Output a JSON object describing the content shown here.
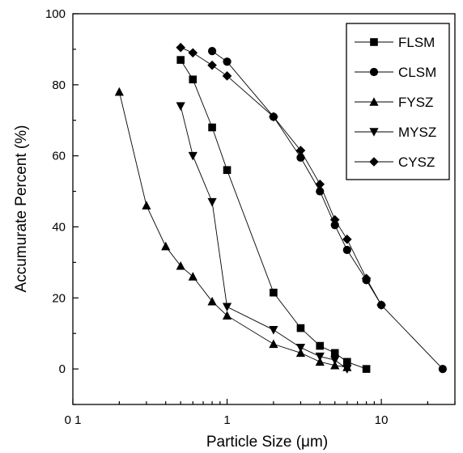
{
  "chart_data": {
    "type": "line",
    "title": "",
    "xlabel": "Particle Size (μm)",
    "ylabel": "Accumurate Percent (%)",
    "x_scale": "log",
    "xlim": [
      0.1,
      30
    ],
    "ylim": [
      -10,
      100
    ],
    "x_ticks": [
      0.1,
      1,
      10
    ],
    "x_tick_labels": [
      "0 1",
      "1",
      "10"
    ],
    "y_ticks": [
      0,
      20,
      40,
      60,
      80,
      100
    ],
    "y_tick_labels": [
      "0",
      "20",
      "40",
      "60",
      "80",
      "100"
    ],
    "grid": false,
    "legend_position": "top-right",
    "series": [
      {
        "name": "FLSM",
        "marker": "square",
        "x": [
          0.5,
          0.6,
          0.8,
          1,
          2,
          3,
          4,
          5,
          6,
          8
        ],
        "y": [
          87,
          81.5,
          68,
          56,
          21.5,
          11.5,
          6.5,
          4.5,
          2,
          0
        ]
      },
      {
        "name": "CLSM",
        "marker": "circle",
        "x": [
          0.8,
          1,
          2,
          3,
          4,
          5,
          6,
          8,
          10,
          25
        ],
        "y": [
          89.5,
          86.5,
          71,
          59.5,
          50,
          40.5,
          33.5,
          25,
          18,
          0
        ]
      },
      {
        "name": "FYSZ",
        "marker": "triangle-up",
        "x": [
          0.2,
          0.3,
          0.4,
          0.5,
          0.6,
          0.8,
          1,
          2,
          3,
          4,
          5,
          6
        ],
        "y": [
          78,
          46,
          34.5,
          29,
          26,
          19,
          15,
          7,
          4.5,
          2,
          1,
          0.5
        ]
      },
      {
        "name": "MYSZ",
        "marker": "triangle-down",
        "x": [
          0.5,
          0.6,
          0.8,
          1,
          2,
          3,
          4,
          5,
          6
        ],
        "y": [
          74,
          60,
          47,
          17.5,
          11,
          6,
          3.5,
          2.5,
          0
        ]
      },
      {
        "name": "CYSZ",
        "marker": "diamond",
        "x": [
          0.5,
          0.6,
          0.8,
          1,
          2,
          3,
          4,
          5,
          6,
          8,
          10
        ],
        "y": [
          90.5,
          89,
          85.5,
          82.5,
          71,
          61.5,
          52,
          42,
          36.5,
          25.5,
          18
        ]
      }
    ]
  }
}
